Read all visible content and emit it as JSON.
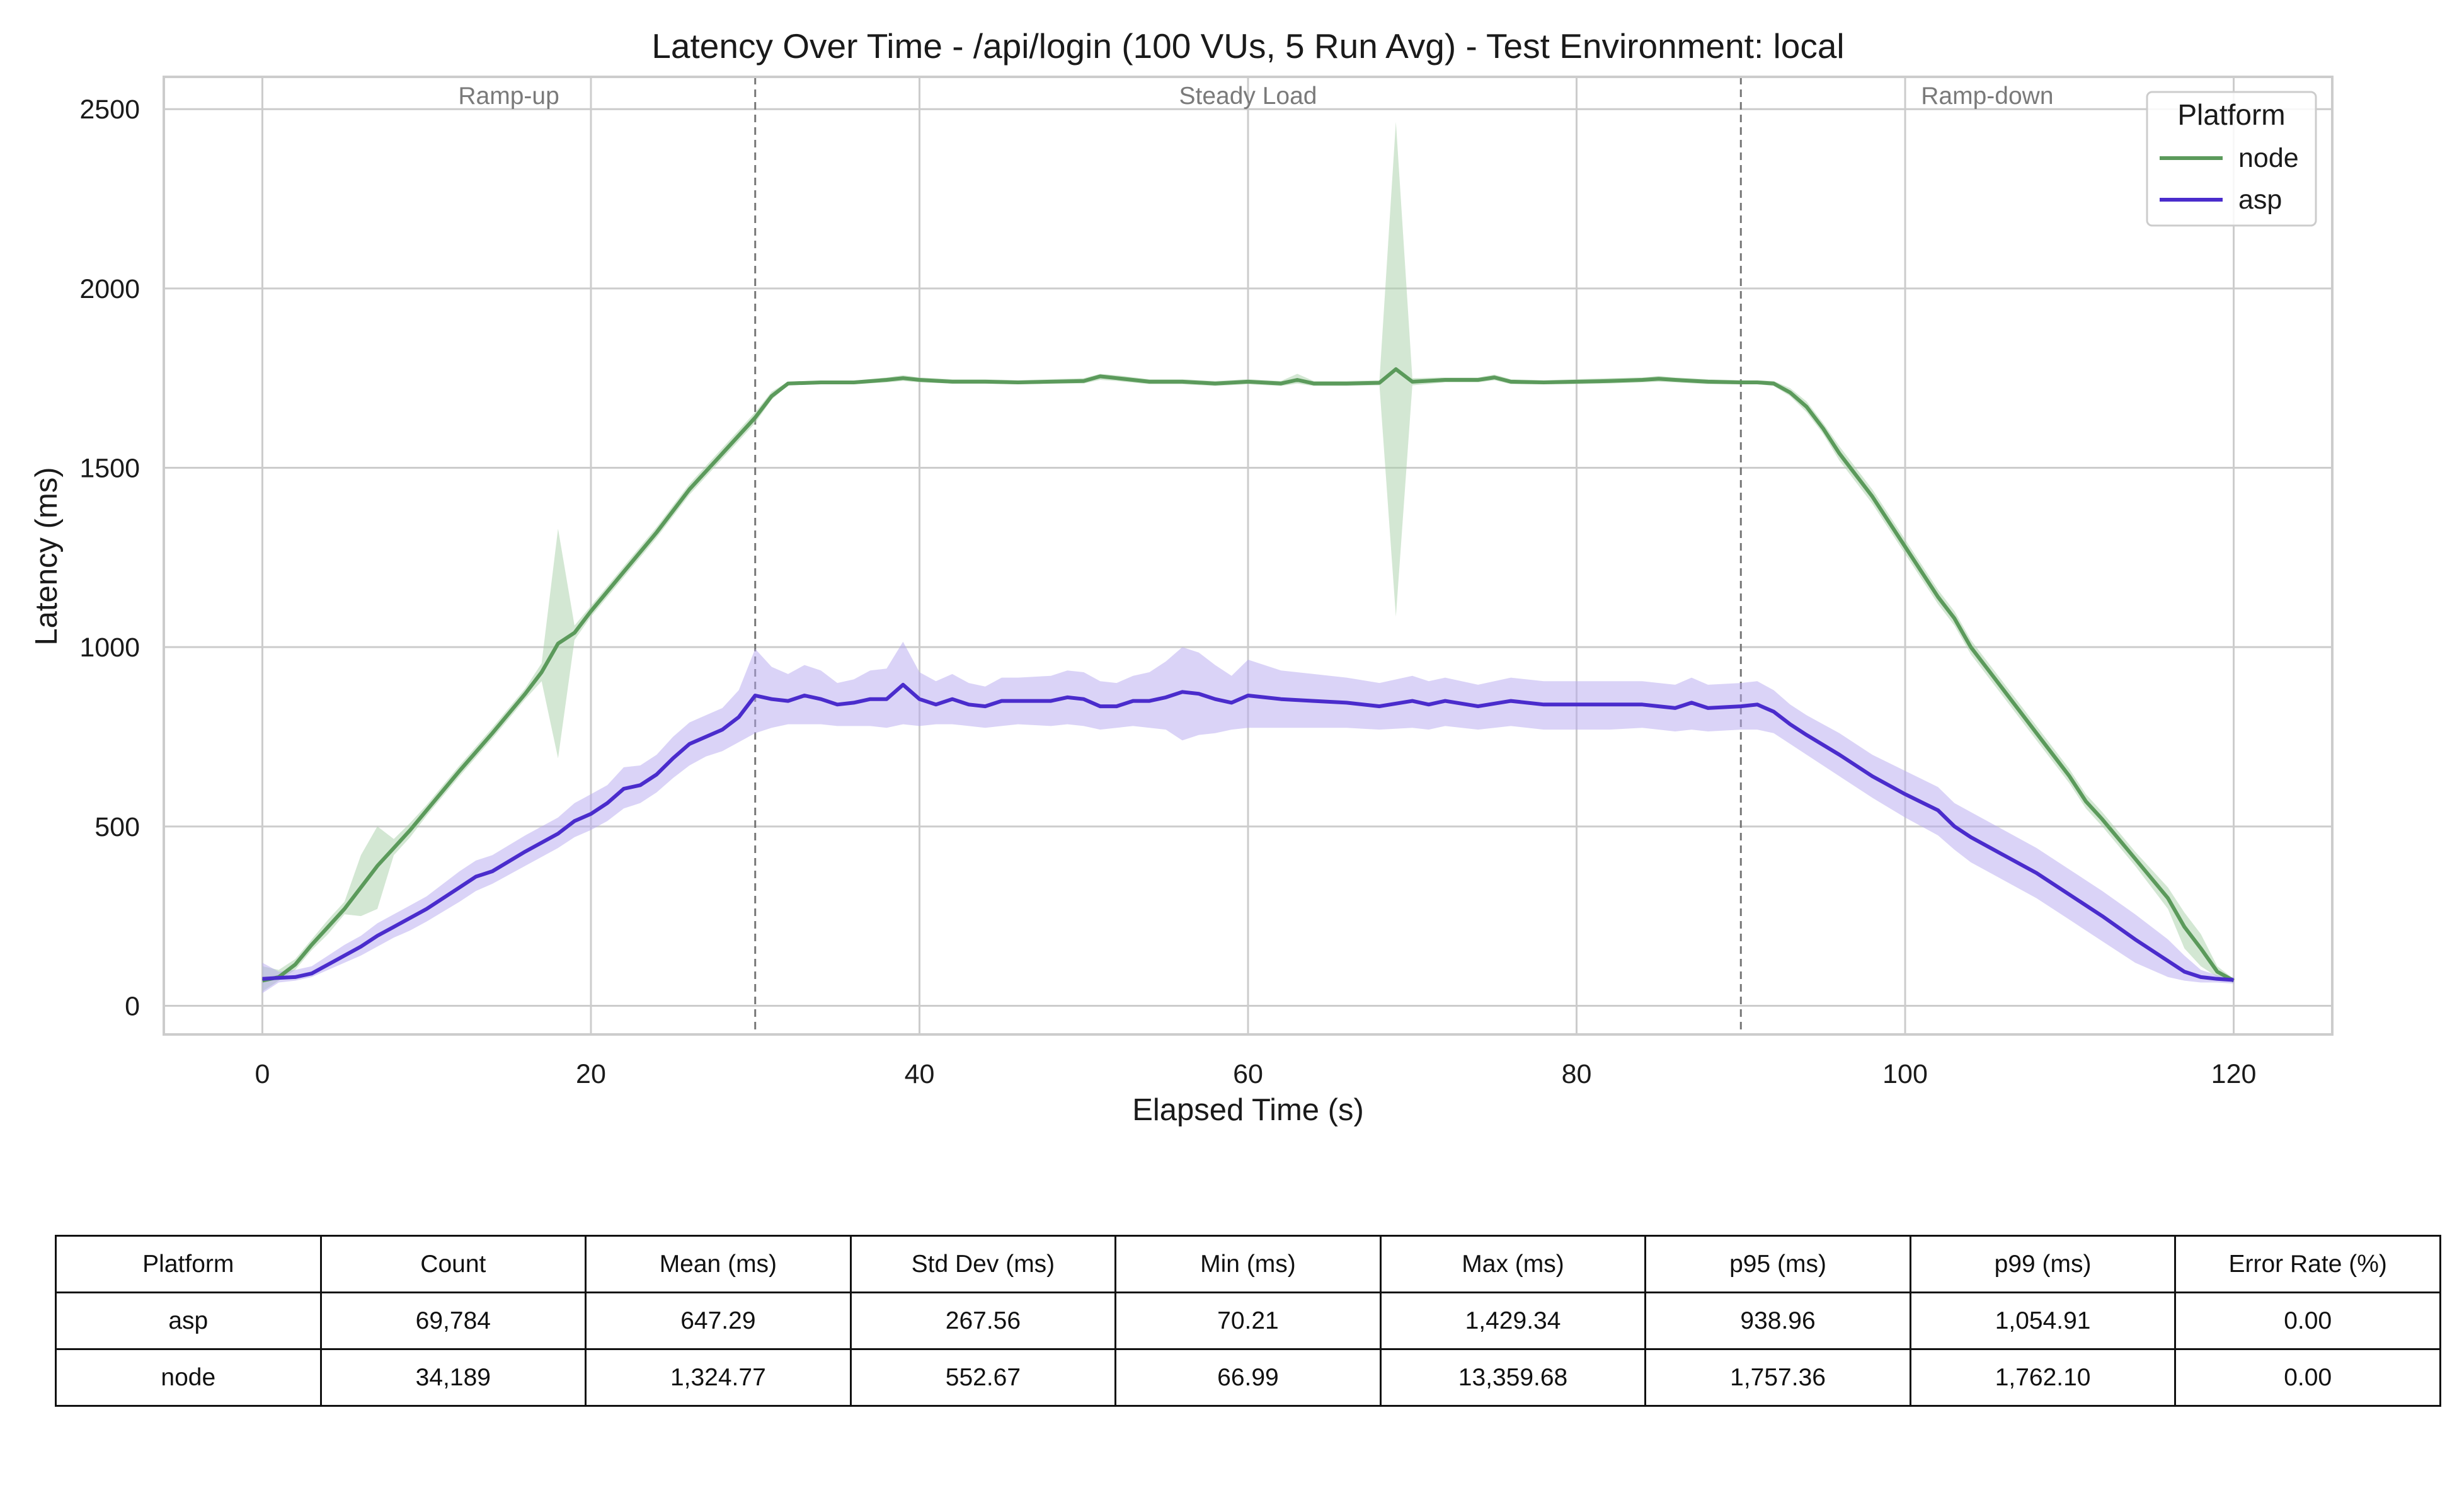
{
  "chart_data": {
    "type": "line",
    "title": "Latency Over Time - /api/login (100 VUs, 5 Run Avg) - Test Environment: local",
    "xlabel": "Elapsed Time (s)",
    "ylabel": "Latency (ms)",
    "xlim": [
      -6,
      126
    ],
    "ylim": [
      -80,
      2590
    ],
    "xticks": [
      0,
      20,
      40,
      60,
      80,
      100,
      120
    ],
    "yticks": [
      0,
      500,
      1000,
      1500,
      2000,
      2500
    ],
    "grid": true,
    "legend": {
      "title": "Platform",
      "position": "top-right"
    },
    "phases": [
      {
        "label": "Ramp-up",
        "x": 15
      },
      {
        "label": "Steady Load",
        "x": 60
      },
      {
        "label": "Ramp-down",
        "x": 105
      }
    ],
    "phase_boundaries": [
      30,
      90
    ],
    "series": [
      {
        "name": "node",
        "color": "#5b9a5b",
        "band_color": "#a8d0a8",
        "x": [
          0,
          1,
          2,
          3,
          4,
          5,
          6,
          7,
          8,
          9,
          10,
          12,
          14,
          16,
          17,
          18,
          19,
          20,
          22,
          24,
          26,
          28,
          30,
          31,
          32,
          34,
          36,
          38,
          39,
          40,
          42,
          44,
          46,
          48,
          50,
          51,
          52,
          54,
          56,
          58,
          60,
          62,
          63,
          64,
          66,
          68,
          69,
          70,
          72,
          74,
          75,
          76,
          78,
          80,
          82,
          84,
          85,
          86,
          88,
          90,
          91,
          92,
          93,
          94,
          95,
          96,
          98,
          100,
          102,
          103,
          104,
          106,
          108,
          109,
          110,
          111,
          112,
          114,
          116,
          117,
          118,
          119,
          120
        ],
        "values": [
          70,
          80,
          115,
          170,
          220,
          270,
          330,
          390,
          440,
          490,
          545,
          655,
          760,
          870,
          930,
          1010,
          1040,
          1100,
          1210,
          1320,
          1440,
          1540,
          1640,
          1700,
          1735,
          1738,
          1738,
          1745,
          1750,
          1745,
          1740,
          1740,
          1738,
          1740,
          1742,
          1755,
          1750,
          1740,
          1740,
          1735,
          1740,
          1735,
          1745,
          1735,
          1735,
          1737,
          1775,
          1740,
          1745,
          1745,
          1752,
          1740,
          1738,
          1740,
          1742,
          1745,
          1748,
          1745,
          1740,
          1738,
          1738,
          1735,
          1710,
          1670,
          1610,
          1540,
          1420,
          1280,
          1140,
          1080,
          1000,
          880,
          760,
          700,
          640,
          570,
          520,
          410,
          300,
          220,
          160,
          95,
          70
        ],
        "lower": [
          40,
          70,
          100,
          155,
          200,
          255,
          250,
          270,
          420,
          470,
          530,
          640,
          745,
          855,
          905,
          690,
          1020,
          1085,
          1195,
          1305,
          1425,
          1525,
          1625,
          1690,
          1730,
          1733,
          1733,
          1738,
          1742,
          1738,
          1735,
          1735,
          1733,
          1735,
          1735,
          1745,
          1742,
          1733,
          1733,
          1728,
          1733,
          1728,
          1735,
          1728,
          1728,
          1730,
          1085,
          1730,
          1738,
          1738,
          1744,
          1733,
          1733,
          1733,
          1735,
          1738,
          1740,
          1738,
          1733,
          1733,
          1733,
          1728,
          1700,
          1655,
          1595,
          1520,
          1400,
          1260,
          1120,
          1060,
          980,
          860,
          740,
          680,
          620,
          550,
          500,
          390,
          270,
          160,
          110,
          80,
          65
        ],
        "upper": [
          110,
          100,
          130,
          185,
          240,
          290,
          420,
          500,
          465,
          510,
          560,
          670,
          775,
          885,
          955,
          1330,
          1060,
          1115,
          1225,
          1335,
          1455,
          1555,
          1655,
          1712,
          1740,
          1743,
          1743,
          1752,
          1758,
          1752,
          1747,
          1747,
          1744,
          1747,
          1750,
          1762,
          1758,
          1747,
          1747,
          1742,
          1747,
          1742,
          1762,
          1742,
          1742,
          1744,
          2465,
          1750,
          1752,
          1752,
          1760,
          1747,
          1744,
          1747,
          1750,
          1752,
          1756,
          1752,
          1747,
          1744,
          1744,
          1742,
          1722,
          1685,
          1625,
          1560,
          1440,
          1300,
          1160,
          1100,
          1020,
          900,
          780,
          720,
          660,
          590,
          540,
          430,
          330,
          260,
          200,
          110,
          75
        ]
      },
      {
        "name": "asp",
        "color": "#4a2ccc",
        "band_color": "#b6a8f0",
        "x": [
          0,
          1,
          2,
          3,
          4,
          5,
          6,
          7,
          8,
          9,
          10,
          12,
          13,
          14,
          16,
          18,
          19,
          20,
          21,
          22,
          23,
          24,
          25,
          26,
          27,
          28,
          29,
          30,
          31,
          32,
          33,
          34,
          35,
          36,
          37,
          38,
          39,
          40,
          41,
          42,
          43,
          44,
          45,
          46,
          48,
          49,
          50,
          51,
          52,
          53,
          54,
          55,
          56,
          57,
          58,
          59,
          60,
          62,
          64,
          66,
          68,
          70,
          71,
          72,
          74,
          76,
          78,
          80,
          82,
          84,
          85,
          86,
          87,
          88,
          90,
          91,
          92,
          93,
          94,
          96,
          98,
          100,
          102,
          103,
          104,
          106,
          108,
          110,
          112,
          114,
          116,
          117,
          118,
          119,
          120
        ],
        "values": [
          75,
          78,
          80,
          90,
          115,
          140,
          165,
          195,
          220,
          245,
          270,
          330,
          360,
          375,
          430,
          480,
          515,
          535,
          565,
          605,
          615,
          645,
          690,
          730,
          750,
          770,
          805,
          865,
          855,
          850,
          865,
          855,
          840,
          845,
          855,
          855,
          895,
          855,
          840,
          855,
          840,
          835,
          850,
          850,
          850,
          860,
          855,
          835,
          835,
          850,
          850,
          860,
          875,
          870,
          855,
          845,
          865,
          855,
          850,
          845,
          835,
          850,
          840,
          850,
          835,
          850,
          840,
          840,
          840,
          840,
          835,
          830,
          845,
          830,
          835,
          840,
          820,
          785,
          755,
          700,
          640,
          590,
          545,
          500,
          470,
          420,
          370,
          310,
          250,
          185,
          125,
          95,
          80,
          75,
          72
        ],
        "lower": [
          35,
          65,
          70,
          80,
          100,
          120,
          140,
          165,
          190,
          210,
          235,
          290,
          320,
          340,
          390,
          440,
          470,
          490,
          515,
          550,
          565,
          595,
          635,
          670,
          695,
          710,
          735,
          760,
          775,
          785,
          785,
          785,
          780,
          780,
          780,
          775,
          785,
          780,
          785,
          785,
          780,
          775,
          780,
          785,
          780,
          785,
          780,
          770,
          775,
          780,
          775,
          770,
          740,
          755,
          760,
          770,
          775,
          775,
          775,
          775,
          770,
          775,
          770,
          780,
          770,
          780,
          770,
          770,
          770,
          775,
          770,
          765,
          770,
          765,
          770,
          770,
          760,
          730,
          700,
          640,
          580,
          525,
          475,
          435,
          400,
          350,
          300,
          240,
          180,
          120,
          80,
          70,
          65,
          65,
          62
        ],
        "upper": [
          120,
          95,
          100,
          110,
          140,
          170,
          195,
          230,
          255,
          280,
          305,
          375,
          405,
          420,
          475,
          525,
          565,
          590,
          615,
          665,
          670,
          700,
          750,
          790,
          810,
          830,
          880,
          995,
          945,
          925,
          950,
          935,
          900,
          910,
          935,
          940,
          1015,
          930,
          905,
          925,
          900,
          890,
          915,
          915,
          920,
          935,
          930,
          905,
          900,
          920,
          930,
          960,
          1000,
          985,
          950,
          920,
          965,
          935,
          925,
          915,
          900,
          920,
          905,
          915,
          895,
          915,
          905,
          905,
          905,
          905,
          900,
          895,
          915,
          895,
          900,
          905,
          880,
          840,
          810,
          760,
          700,
          655,
          610,
          565,
          540,
          490,
          440,
          380,
          320,
          255,
          185,
          140,
          100,
          85,
          80
        ]
      }
    ]
  },
  "table": {
    "headers": [
      "Platform",
      "Count",
      "Mean (ms)",
      "Std Dev (ms)",
      "Min (ms)",
      "Max (ms)",
      "p95 (ms)",
      "p99 (ms)",
      "Error Rate (%)"
    ],
    "rows": [
      [
        "asp",
        "69,784",
        "647.29",
        "267.56",
        "70.21",
        "1,429.34",
        "938.96",
        "1,054.91",
        "0.00"
      ],
      [
        "node",
        "34,189",
        "1,324.77",
        "552.67",
        "66.99",
        "13,359.68",
        "1,757.36",
        "1,762.10",
        "0.00"
      ]
    ]
  }
}
